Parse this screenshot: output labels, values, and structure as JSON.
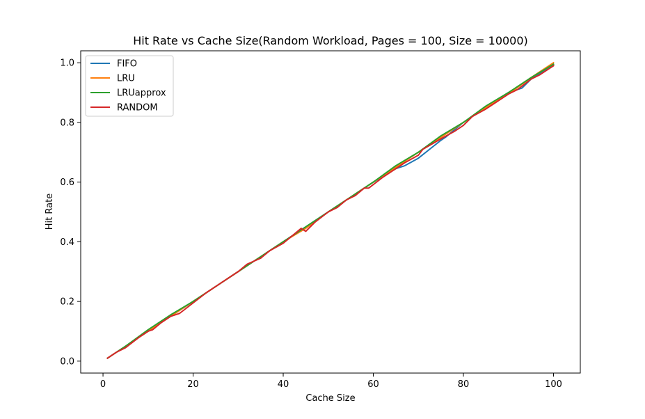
{
  "chart_data": {
    "type": "line",
    "title": "Hit Rate vs Cache Size(Random Workload, Pages = 100, Size = 10000)",
    "xlabel": "Cache Size",
    "ylabel": "Hit Rate",
    "xlim": [
      -4.95,
      105.95
    ],
    "ylim": [
      -0.04,
      1.04
    ],
    "xticks": [
      0,
      20,
      40,
      60,
      80,
      100
    ],
    "xtick_labels": [
      "0",
      "20",
      "40",
      "60",
      "80",
      "100"
    ],
    "yticks": [
      0.0,
      0.2,
      0.4,
      0.6,
      0.8,
      1.0
    ],
    "ytick_labels": [
      "0.0",
      "0.2",
      "0.4",
      "0.6",
      "0.8",
      "1.0"
    ],
    "grid": false,
    "legend_position": "top-left",
    "series": [
      {
        "name": "FIFO",
        "color": "#1f77b4",
        "x": [
          1,
          5,
          10,
          15,
          20,
          25,
          30,
          35,
          40,
          45,
          50,
          55,
          60,
          65,
          67,
          70,
          75,
          76,
          80,
          85,
          90,
          92,
          93,
          95,
          100
        ],
        "y": [
          0.01,
          0.05,
          0.1,
          0.15,
          0.2,
          0.25,
          0.3,
          0.35,
          0.4,
          0.45,
          0.5,
          0.55,
          0.6,
          0.645,
          0.655,
          0.68,
          0.74,
          0.75,
          0.8,
          0.85,
          0.9,
          0.91,
          0.915,
          0.945,
          0.99
        ]
      },
      {
        "name": "LRU",
        "color": "#ff7f0e",
        "x": [
          1,
          5,
          10,
          15,
          20,
          25,
          30,
          35,
          40,
          45,
          50,
          55,
          60,
          65,
          70,
          75,
          80,
          85,
          90,
          95,
          100
        ],
        "y": [
          0.01,
          0.05,
          0.1,
          0.15,
          0.2,
          0.25,
          0.3,
          0.35,
          0.4,
          0.445,
          0.5,
          0.55,
          0.6,
          0.65,
          0.7,
          0.75,
          0.8,
          0.85,
          0.895,
          0.95,
          1.0
        ]
      },
      {
        "name": "LRUapprox",
        "color": "#2ca02c",
        "x": [
          1,
          5,
          10,
          15,
          20,
          25,
          30,
          35,
          40,
          45,
          50,
          55,
          60,
          65,
          70,
          75,
          80,
          85,
          90,
          95,
          100
        ],
        "y": [
          0.01,
          0.05,
          0.105,
          0.155,
          0.2,
          0.25,
          0.3,
          0.35,
          0.4,
          0.45,
          0.5,
          0.55,
          0.6,
          0.655,
          0.7,
          0.755,
          0.8,
          0.855,
          0.9,
          0.95,
          0.995
        ]
      },
      {
        "name": "RANDOM",
        "color": "#d62728",
        "x": [
          1,
          3,
          5,
          8,
          10,
          11,
          13,
          15,
          17,
          20,
          23,
          25,
          27,
          30,
          32,
          35,
          37,
          40,
          42,
          44,
          45,
          47,
          50,
          52,
          54,
          56,
          58,
          59,
          62,
          65,
          67,
          70,
          71,
          75,
          78,
          80,
          82,
          85,
          87,
          90,
          92,
          95,
          97,
          100
        ],
        "y": [
          0.01,
          0.03,
          0.045,
          0.08,
          0.1,
          0.105,
          0.13,
          0.15,
          0.16,
          0.195,
          0.23,
          0.25,
          0.27,
          0.3,
          0.325,
          0.345,
          0.37,
          0.395,
          0.42,
          0.445,
          0.435,
          0.465,
          0.5,
          0.515,
          0.54,
          0.555,
          0.58,
          0.58,
          0.615,
          0.645,
          0.665,
          0.69,
          0.71,
          0.745,
          0.77,
          0.79,
          0.82,
          0.845,
          0.865,
          0.895,
          0.91,
          0.945,
          0.96,
          0.99
        ]
      }
    ]
  }
}
